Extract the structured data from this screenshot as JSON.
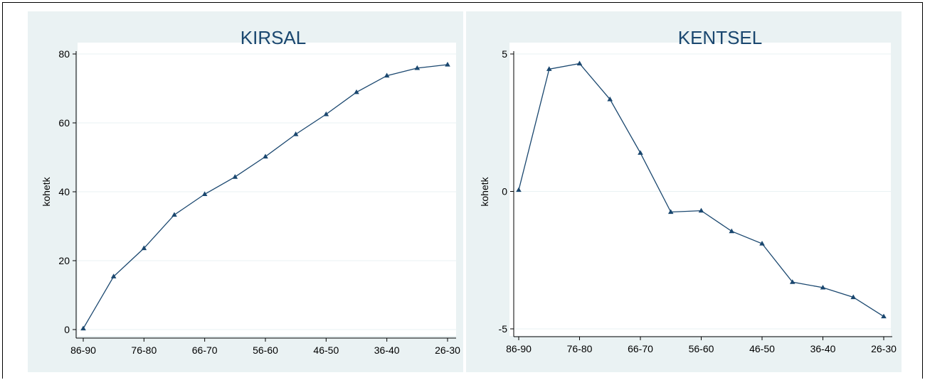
{
  "chart_data": [
    {
      "type": "line",
      "title": "KIRSAL",
      "ylabel": "kohetk",
      "xlabel": "",
      "x_tick_labels": [
        "86-90",
        "76-80",
        "66-70",
        "56-60",
        "46-50",
        "36-40",
        "26-30"
      ],
      "y_ticks": [
        0,
        20,
        40,
        60,
        80
      ],
      "ylim": [
        0,
        80
      ],
      "grid": true,
      "legend": "none",
      "series": [
        {
          "marker": "triangle",
          "values": [
            0.3,
            15.4,
            23.6,
            33.3,
            39.3,
            44.3,
            50.2,
            56.7,
            62.5,
            68.9,
            73.7,
            75.9,
            76.9
          ]
        }
      ]
    },
    {
      "type": "line",
      "title": "KENTSEL",
      "ylabel": "kohetk",
      "xlabel": "",
      "x_tick_labels": [
        "86-90",
        "76-80",
        "66-70",
        "56-60",
        "46-50",
        "36-40",
        "26-30"
      ],
      "y_ticks": [
        -5,
        0,
        5
      ],
      "ylim": [
        -5,
        5
      ],
      "grid": true,
      "legend": "none",
      "series": [
        {
          "marker": "triangle",
          "values": [
            0.05,
            4.45,
            4.65,
            3.35,
            1.4,
            -0.75,
            -0.7,
            -1.45,
            -1.9,
            -3.3,
            -3.5,
            -3.85,
            -4.55
          ]
        }
      ]
    }
  ],
  "colors": {
    "series": "#1a476f",
    "panel_background": "#eaf2f3",
    "plot_background": "#ffffff"
  }
}
